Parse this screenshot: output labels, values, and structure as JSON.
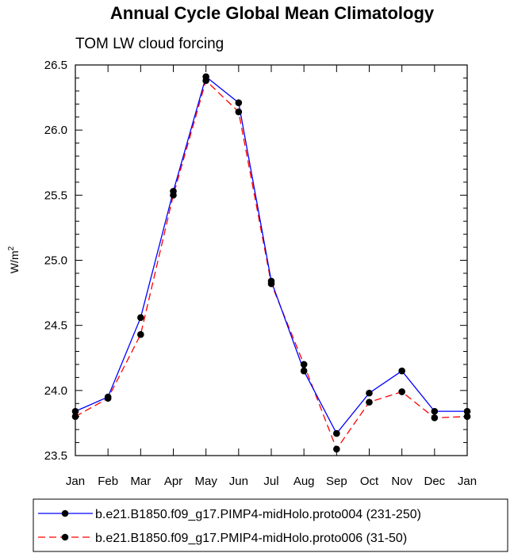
{
  "chart_data": {
    "type": "line",
    "title": "Annual Cycle Global Mean Climatology",
    "subtitle": "TOM LW cloud forcing",
    "xlabel": "",
    "ylabel": "W/m",
    "ylabel_superscript": "2",
    "categories": [
      "Jan",
      "Feb",
      "Mar",
      "Apr",
      "May",
      "Jun",
      "Jul",
      "Aug",
      "Sep",
      "Oct",
      "Nov",
      "Dec",
      "Jan"
    ],
    "ylim": [
      23.5,
      26.5
    ],
    "yticks": [
      "23.5",
      "24.0",
      "24.5",
      "25.0",
      "25.5",
      "26.0",
      "26.5"
    ],
    "grid": false,
    "legend_position": "bottom",
    "series": [
      {
        "name": "b.e21.B1850.f09_g17.PIMP4-midHolo.proto004 (231-250)",
        "color": "#0000ff",
        "dash": "solid",
        "values": [
          23.84,
          23.95,
          24.56,
          25.53,
          26.41,
          26.21,
          24.84,
          24.15,
          23.67,
          23.98,
          24.15,
          23.84,
          23.84
        ]
      },
      {
        "name": "b.e21.B1850.f09_g17.PMIP4-midHolo.proto006 (31-50)",
        "color": "#ff0000",
        "dash": "dashed",
        "values": [
          23.8,
          23.94,
          24.43,
          25.5,
          26.38,
          26.14,
          24.82,
          24.2,
          23.55,
          23.91,
          23.99,
          23.79,
          23.8
        ]
      }
    ]
  }
}
